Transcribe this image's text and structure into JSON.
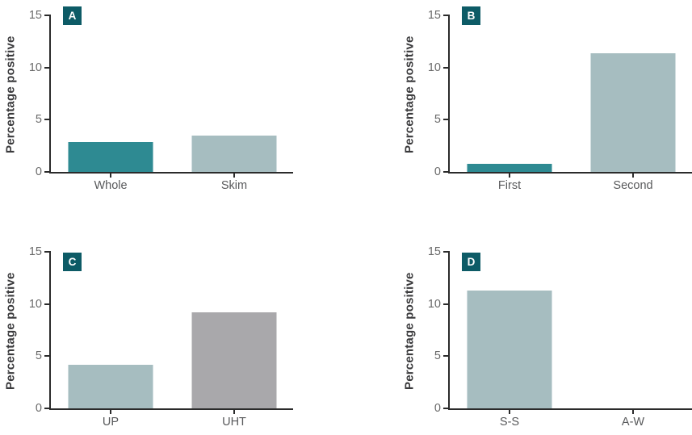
{
  "figure": {
    "background": "#ffffff",
    "axis_color": "#2b2b2b",
    "tick_label_color": "#6a6a6a",
    "category_label_color": "#58595b",
    "y_title_color": "#3a3a3c",
    "panel_badge_color": "#0d5b66",
    "bar_teal": "#2e8a92",
    "bar_light_teal": "#a6bdc0",
    "bar_gray": "#a9a8ab"
  },
  "chart_data": [
    {
      "type": "bar",
      "panel_label": "A",
      "categories": [
        "Whole",
        "Skim"
      ],
      "values": [
        2.9,
        3.5
      ],
      "colors": [
        "#2e8a92",
        "#a6bdc0"
      ],
      "title": "",
      "xlabel": "",
      "ylabel": "Percentage positive",
      "ylim": [
        0,
        15
      ],
      "yticks": [
        15,
        10,
        5,
        0
      ],
      "grid": false,
      "legend": "none"
    },
    {
      "type": "bar",
      "panel_label": "B",
      "categories": [
        "First",
        "Second"
      ],
      "values": [
        0.8,
        11.4
      ],
      "colors": [
        "#2e8a92",
        "#a6bdc0"
      ],
      "title": "",
      "xlabel": "",
      "ylabel": "Percentage positive",
      "ylim": [
        0,
        15
      ],
      "yticks": [
        15,
        10,
        5,
        0
      ],
      "grid": false,
      "legend": "none"
    },
    {
      "type": "bar",
      "panel_label": "C",
      "categories": [
        "UP",
        "UHT"
      ],
      "values": [
        4.2,
        9.2
      ],
      "colors": [
        "#a6bdc0",
        "#a9a8ab"
      ],
      "title": "",
      "xlabel": "",
      "ylabel": "Percentage positive",
      "ylim": [
        0,
        15
      ],
      "yticks": [
        15,
        10,
        5,
        0
      ],
      "grid": false,
      "legend": "none"
    },
    {
      "type": "bar",
      "panel_label": "D",
      "categories": [
        "S-S",
        "A-W"
      ],
      "values": [
        11.3,
        0
      ],
      "colors": [
        "#a6bdc0",
        "#a6bdc0"
      ],
      "title": "",
      "xlabel": "",
      "ylabel": "Percentage positive",
      "ylim": [
        0,
        15
      ],
      "yticks": [
        15,
        10,
        5,
        0
      ],
      "grid": false,
      "legend": "none"
    }
  ]
}
